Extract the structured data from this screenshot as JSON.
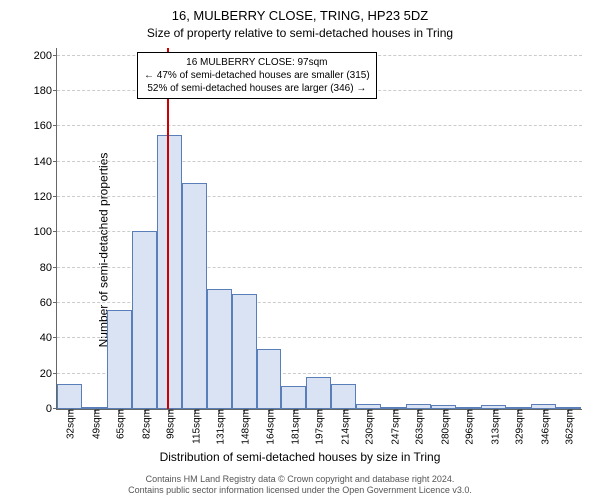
{
  "title_main": "16, MULBERRY CLOSE, TRING, HP23 5DZ",
  "title_sub": "Size of property relative to semi-detached houses in Tring",
  "y_axis_label": "Number of semi-detached properties",
  "x_axis_label": "Distribution of semi-detached houses by size in Tring",
  "footer_line1": "Contains HM Land Registry data © Crown copyright and database right 2024.",
  "footer_line2": "Contains public sector information licensed under the Open Government Licence v3.0.",
  "annotation": {
    "line1": "16 MULBERRY CLOSE: 97sqm",
    "line2": "← 47% of semi-detached houses are smaller (315)",
    "line3": "52% of semi-detached houses are larger (346) →"
  },
  "chart": {
    "type": "histogram",
    "background_color": "#ffffff",
    "bar_fill": "#d9e3f3",
    "bar_stroke": "#5a7fb8",
    "grid_color": "#cccccc",
    "axis_color": "#666666",
    "marker_color": "#cc0000",
    "marker_x": 97,
    "x_range": [
      24,
      372
    ],
    "y_range": [
      0,
      205
    ],
    "y_ticks": [
      0,
      20,
      40,
      60,
      80,
      100,
      120,
      140,
      160,
      180,
      200
    ],
    "x_ticks": [
      32,
      49,
      65,
      82,
      98,
      115,
      131,
      148,
      164,
      181,
      197,
      214,
      230,
      247,
      263,
      280,
      296,
      313,
      329,
      346,
      362
    ],
    "x_tick_suffix": "sqm",
    "bin_width": 16.5,
    "bars": [
      {
        "x": 24,
        "h": 14
      },
      {
        "x": 40.5,
        "h": 1
      },
      {
        "x": 57,
        "h": 56
      },
      {
        "x": 73.5,
        "h": 101
      },
      {
        "x": 90,
        "h": 155
      },
      {
        "x": 106.5,
        "h": 128
      },
      {
        "x": 123,
        "h": 68
      },
      {
        "x": 139.5,
        "h": 65
      },
      {
        "x": 156,
        "h": 34
      },
      {
        "x": 172.5,
        "h": 13
      },
      {
        "x": 189,
        "h": 18
      },
      {
        "x": 205.5,
        "h": 14
      },
      {
        "x": 222,
        "h": 3
      },
      {
        "x": 238.5,
        "h": 1
      },
      {
        "x": 255,
        "h": 3
      },
      {
        "x": 271.5,
        "h": 2
      },
      {
        "x": 288,
        "h": 0
      },
      {
        "x": 304.5,
        "h": 2
      },
      {
        "x": 321,
        "h": 0
      },
      {
        "x": 337.5,
        "h": 3
      },
      {
        "x": 354,
        "h": 1
      }
    ]
  }
}
